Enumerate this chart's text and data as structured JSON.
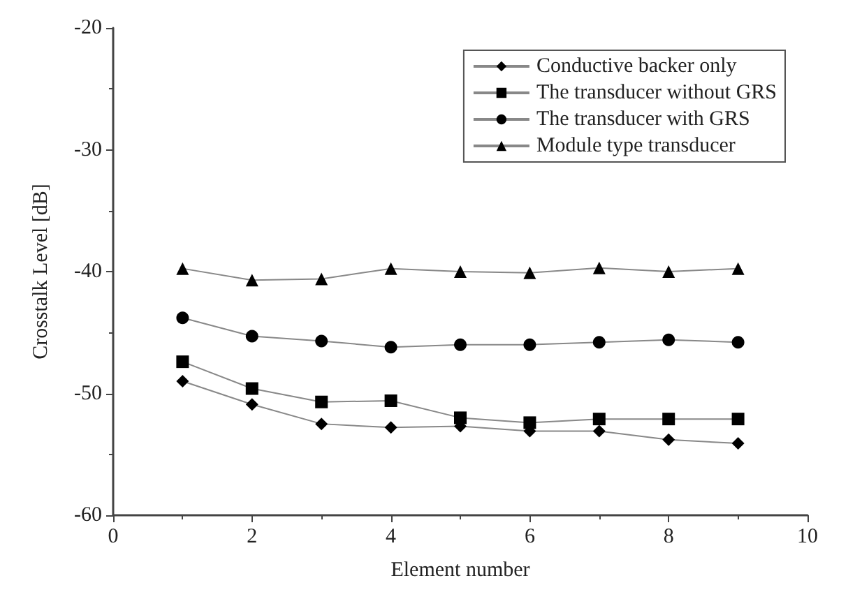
{
  "chart_data": {
    "type": "line",
    "xlabel": "Element number",
    "ylabel": "Crosstalk Level [dB]",
    "x": [
      1,
      2,
      3,
      4,
      5,
      6,
      7,
      8,
      9
    ],
    "xlim": [
      0,
      10
    ],
    "xticks": [
      0,
      2,
      4,
      6,
      8,
      10
    ],
    "ylim": [
      -60,
      -20
    ],
    "yticks": [
      -60,
      -50,
      -40,
      -30,
      -20
    ],
    "grid": false,
    "legend": "top right",
    "line_style": "solid",
    "series": [
      {
        "name": "Conductive backer only",
        "color": "#000000",
        "marker": "diamond",
        "values": [
          -49.0,
          -50.9,
          -52.5,
          -52.8,
          -52.7,
          -53.1,
          -53.1,
          -53.8,
          -54.1
        ]
      },
      {
        "name": "The transducer without GRS",
        "color": "#000000",
        "marker": "square",
        "values": [
          -47.4,
          -49.6,
          -50.7,
          -50.6,
          -52.0,
          -52.4,
          -52.1,
          -52.1,
          -52.1
        ]
      },
      {
        "name": "The transducer with GRS",
        "color": "#000000",
        "marker": "circle",
        "values": [
          -43.8,
          -45.3,
          -45.7,
          -46.2,
          -46.0,
          -46.0,
          -45.8,
          -45.6,
          -45.8
        ]
      },
      {
        "name": "Module type transducer",
        "color": "#000000",
        "marker": "triangle",
        "values": [
          -39.75,
          -40.7,
          -40.6,
          -39.75,
          -40.0,
          -40.1,
          -39.7,
          -40.0,
          -39.75
        ]
      }
    ]
  }
}
